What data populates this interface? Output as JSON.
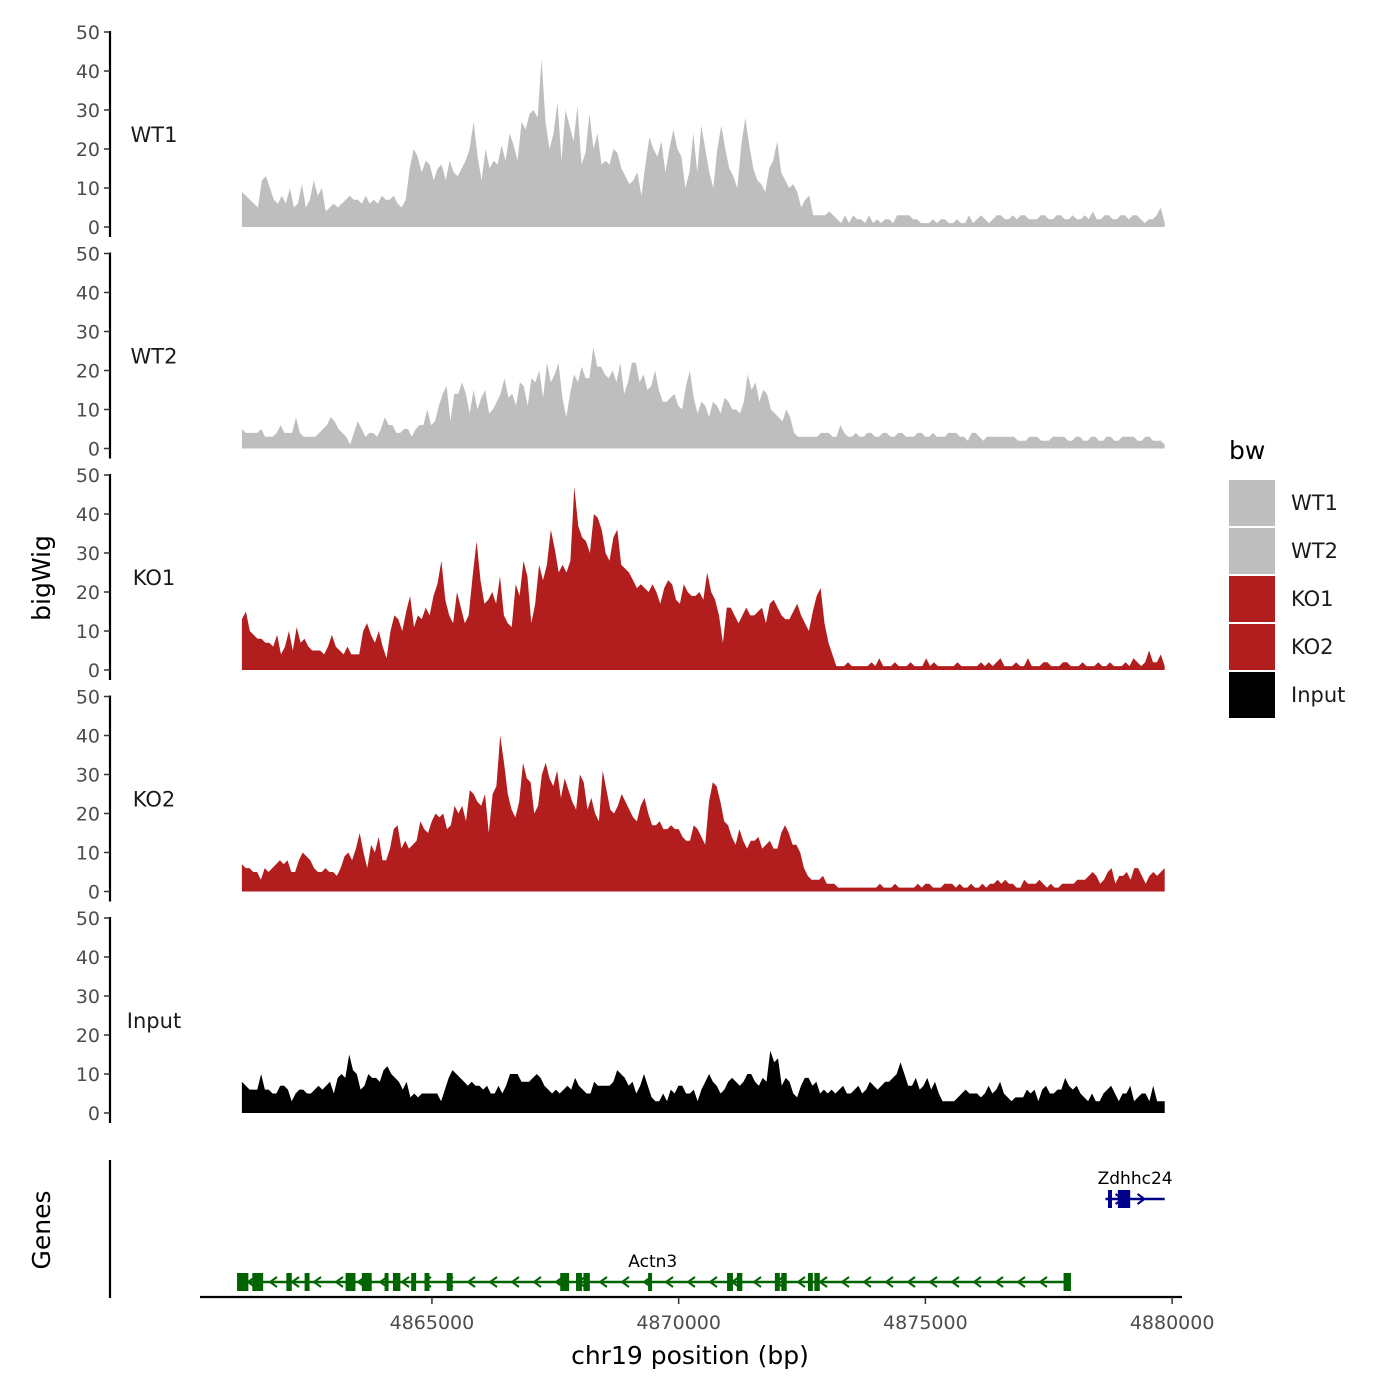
{
  "chart_data": {
    "type": "area",
    "subtype": "genome-browser-coverage-tracks",
    "y_axis_title": "bigWig",
    "genes_axis_title": "Genes",
    "x_axis_title": "chr19 position (bp)",
    "x_range": [
      4860300,
      4880200
    ],
    "x_data_extent": [
      4861150,
      4879850
    ],
    "x_ticks": [
      4865000,
      4870000,
      4875000,
      4880000
    ],
    "x_tick_labels": [
      "4865000",
      "4870000",
      "4875000",
      "4880000"
    ],
    "y_range": [
      0,
      50
    ],
    "y_ticks": [
      0,
      10,
      20,
      30,
      40,
      50
    ],
    "y_tick_labels": [
      "0",
      "10",
      "20",
      "30",
      "40",
      "50"
    ],
    "legend": {
      "title": "bw",
      "entries": [
        {
          "label": "WT1",
          "color": "#bebebe"
        },
        {
          "label": "WT2",
          "color": "#bebebe"
        },
        {
          "label": "KO1",
          "color": "#b21e1e"
        },
        {
          "label": "KO2",
          "color": "#b21e1e"
        },
        {
          "label": "Input",
          "color": "#000000"
        }
      ]
    },
    "tracks": [
      {
        "name": "WT1",
        "color": "#bebebe",
        "values": [
          9,
          8,
          7,
          6,
          5,
          12,
          13,
          10,
          7,
          6,
          8,
          6,
          10,
          5,
          6,
          11,
          5,
          7,
          12,
          8,
          10,
          4,
          5,
          6,
          5,
          6,
          7,
          8,
          7,
          7,
          6,
          8,
          6,
          7,
          6,
          8,
          7,
          7,
          8,
          6,
          5,
          7,
          15,
          20,
          18,
          14,
          17,
          16,
          12,
          15,
          16,
          12,
          17,
          14,
          13,
          15,
          17,
          20,
          27,
          18,
          12,
          20,
          15,
          17,
          16,
          21,
          17,
          24,
          21,
          17,
          27,
          25,
          29,
          30,
          28,
          43,
          27,
          20,
          24,
          32,
          17,
          30,
          26,
          22,
          31,
          16,
          19,
          29,
          20,
          24,
          16,
          17,
          16,
          20,
          19,
          15,
          13,
          11,
          12,
          14,
          8,
          16,
          23,
          20,
          18,
          22,
          14,
          20,
          25,
          20,
          18,
          10,
          14,
          24,
          14,
          26,
          20,
          14,
          10,
          20,
          26,
          20,
          15,
          13,
          10,
          21,
          28,
          21,
          15,
          12,
          11,
          9,
          15,
          17,
          22,
          14,
          12,
          10,
          11,
          9,
          5,
          7,
          8,
          3,
          3,
          3,
          3,
          4,
          3,
          2,
          1,
          3,
          1,
          3,
          2,
          2,
          1,
          3,
          1,
          2,
          1,
          2,
          2,
          1,
          3,
          3,
          3,
          3,
          2,
          2,
          1,
          1,
          1,
          2,
          1,
          2,
          2,
          1,
          1,
          2,
          1,
          1,
          3,
          1,
          2,
          3,
          2,
          1,
          2,
          3,
          3,
          2,
          2,
          3,
          2,
          3,
          3,
          2,
          2,
          2,
          3,
          3,
          2,
          2,
          3,
          3,
          2,
          2,
          3,
          2,
          2,
          3,
          2,
          4,
          2,
          2,
          3,
          3,
          2,
          2,
          3,
          3,
          2,
          3,
          3,
          2,
          1,
          2,
          2,
          3,
          5,
          1
        ]
      },
      {
        "name": "WT2",
        "color": "#bebebe",
        "values": [
          5,
          4,
          4,
          4,
          4,
          5,
          3,
          3,
          3,
          4,
          6,
          4,
          4,
          4,
          8,
          4,
          3,
          3,
          3,
          3,
          4,
          5,
          6,
          8,
          7,
          5,
          4,
          3,
          1,
          4,
          7,
          5,
          3,
          4,
          4,
          3,
          5,
          8,
          6,
          6,
          4,
          4,
          5,
          5,
          3,
          5,
          6,
          6,
          10,
          6,
          7,
          11,
          14,
          16,
          7,
          14,
          14,
          17,
          14,
          9,
          15,
          10,
          13,
          15,
          9,
          10,
          12,
          14,
          18,
          13,
          14,
          11,
          17,
          16,
          11,
          18,
          17,
          20,
          13,
          22,
          17,
          19,
          22,
          13,
          8,
          14,
          19,
          17,
          21,
          18,
          18,
          26,
          21,
          21,
          19,
          18,
          20,
          17,
          22,
          14,
          17,
          22,
          22,
          17,
          19,
          15,
          16,
          20,
          15,
          12,
          12,
          13,
          14,
          11,
          10,
          16,
          20,
          13,
          9,
          12,
          11,
          8,
          12,
          11,
          9,
          13,
          12,
          10,
          10,
          9,
          12,
          19,
          15,
          17,
          12,
          15,
          14,
          10,
          9,
          8,
          7,
          10,
          8,
          4,
          3,
          3,
          3,
          3,
          3,
          3,
          4,
          4,
          4,
          3,
          3,
          6,
          4,
          3,
          3,
          4,
          3,
          3,
          4,
          4,
          3,
          3,
          4,
          4,
          3,
          3,
          4,
          4,
          3,
          3,
          3,
          4,
          4,
          3,
          3,
          4,
          3,
          3,
          3,
          4,
          4,
          4,
          3,
          3,
          2,
          4,
          4,
          3,
          2,
          3,
          3,
          3,
          3,
          3,
          3,
          3,
          3,
          2,
          2,
          2,
          3,
          3,
          3,
          2,
          2,
          2,
          3,
          3,
          3,
          3,
          2,
          2,
          3,
          3,
          2,
          2,
          3,
          3,
          2,
          2,
          3,
          3,
          2,
          2,
          3,
          3,
          3,
          3,
          2,
          2,
          3,
          3,
          2,
          2,
          2,
          1
        ]
      },
      {
        "name": "KO1",
        "color": "#b21e1e",
        "values": [
          13,
          15,
          10,
          9,
          8,
          8,
          7,
          7,
          6,
          9,
          4,
          6,
          10,
          5,
          11,
          7,
          8,
          6,
          5,
          5,
          5,
          4,
          6,
          9,
          6,
          5,
          4,
          6,
          4,
          4,
          4,
          10,
          12,
          9,
          7,
          10,
          6,
          3,
          10,
          14,
          13,
          10,
          15,
          19,
          11,
          14,
          13,
          16,
          14,
          19,
          22,
          28,
          18,
          14,
          12,
          20,
          16,
          12,
          14,
          24,
          33,
          23,
          17,
          18,
          20,
          17,
          24,
          14,
          12,
          11,
          22,
          19,
          28,
          24,
          12,
          17,
          27,
          23,
          27,
          36,
          31,
          25,
          27,
          25,
          28,
          47,
          37,
          34,
          33,
          30,
          40,
          39,
          36,
          30,
          28,
          34,
          36,
          27,
          26,
          25,
          23,
          21,
          22,
          21,
          20,
          22,
          20,
          17,
          21,
          23,
          22,
          18,
          17,
          22,
          20,
          19,
          19,
          20,
          18,
          25,
          20,
          18,
          14,
          7,
          16,
          16,
          14,
          12,
          14,
          16,
          14,
          14,
          15,
          16,
          12,
          17,
          18,
          16,
          14,
          13,
          13,
          15,
          17,
          14,
          12,
          10,
          15,
          19,
          21,
          12,
          7,
          4,
          1,
          1,
          1,
          2,
          1,
          1,
          1,
          1,
          1,
          2,
          1,
          3,
          1,
          1,
          1,
          2,
          1,
          1,
          1,
          2,
          1,
          1,
          1,
          3,
          1,
          2,
          1,
          1,
          1,
          1,
          1,
          2,
          1,
          1,
          1,
          1,
          1,
          2,
          1,
          2,
          1,
          2,
          3,
          1,
          1,
          1,
          2,
          1,
          1,
          3,
          1,
          1,
          1,
          2,
          2,
          1,
          1,
          1,
          2,
          2,
          1,
          1,
          1,
          2,
          1,
          1,
          1,
          2,
          1,
          1,
          2,
          1,
          1,
          1,
          2,
          1,
          3,
          2,
          1,
          2,
          5,
          2,
          2,
          4,
          1
        ]
      },
      {
        "name": "KO2",
        "color": "#b21e1e",
        "values": [
          7,
          6,
          6,
          5,
          5,
          3,
          6,
          5,
          6,
          7,
          8,
          7,
          8,
          5,
          5,
          8,
          10,
          9,
          8,
          6,
          5,
          5,
          6,
          5,
          5,
          4,
          6,
          9,
          10,
          8,
          11,
          15,
          10,
          6,
          12,
          10,
          14,
          8,
          8,
          11,
          16,
          17,
          11,
          13,
          11,
          12,
          13,
          18,
          16,
          15,
          18,
          20,
          19,
          20,
          16,
          17,
          22,
          20,
          22,
          18,
          26,
          25,
          23,
          22,
          25,
          15,
          25,
          27,
          40,
          33,
          25,
          21,
          19,
          23,
          33,
          29,
          28,
          20,
          22,
          30,
          33,
          29,
          27,
          31,
          24,
          29,
          26,
          23,
          21,
          30,
          28,
          21,
          24,
          20,
          18,
          31,
          26,
          21,
          20,
          22,
          25,
          23,
          21,
          19,
          18,
          22,
          24,
          20,
          17,
          17,
          18,
          16,
          16,
          17,
          16,
          16,
          14,
          13,
          13,
          17,
          16,
          14,
          12,
          23,
          28,
          27,
          23,
          18,
          17,
          14,
          12,
          16,
          13,
          11,
          13,
          13,
          14,
          11,
          12,
          13,
          11,
          11,
          15,
          17,
          15,
          12,
          12,
          10,
          6,
          4,
          3,
          3,
          3,
          4,
          2,
          2,
          2,
          1,
          1,
          1,
          1,
          1,
          1,
          1,
          1,
          1,
          1,
          1,
          2,
          1,
          1,
          1,
          2,
          1,
          1,
          1,
          1,
          1,
          2,
          1,
          2,
          2,
          1,
          1,
          1,
          2,
          2,
          2,
          1,
          2,
          1,
          1,
          2,
          1,
          1,
          2,
          1,
          2,
          2,
          3,
          2,
          3,
          2,
          2,
          1,
          1,
          3,
          2,
          2,
          2,
          3,
          2,
          1,
          2,
          1,
          1,
          2,
          2,
          2,
          2,
          3,
          3,
          3,
          4,
          5,
          4,
          2,
          3,
          5,
          6,
          2,
          4,
          4,
          5,
          3,
          6,
          6,
          4,
          2,
          4,
          5,
          4,
          5,
          6
        ]
      },
      {
        "name": "Input",
        "color": "#000000",
        "values": [
          8,
          7,
          6,
          6,
          6,
          10,
          6,
          6,
          5,
          5,
          7,
          7,
          6,
          3,
          5,
          6,
          6,
          5,
          5,
          6,
          7,
          6,
          7,
          8,
          5,
          9,
          10,
          9,
          15,
          11,
          10,
          6,
          7,
          10,
          9,
          9,
          8,
          11,
          12,
          10,
          9,
          8,
          6,
          8,
          4,
          5,
          4,
          5,
          5,
          5,
          5,
          5,
          3,
          6,
          9,
          11,
          10,
          9,
          8,
          7,
          8,
          7,
          7,
          6,
          7,
          5,
          5,
          7,
          5,
          7,
          10,
          10,
          10,
          8,
          8,
          8,
          9,
          10,
          9,
          7,
          6,
          5,
          6,
          5,
          6,
          7,
          6,
          9,
          7,
          6,
          5,
          5,
          8,
          7,
          7,
          7,
          7,
          8,
          11,
          10,
          9,
          7,
          8,
          5,
          7,
          10,
          7,
          4,
          3,
          3,
          5,
          3,
          6,
          5,
          7,
          7,
          5,
          5,
          6,
          3,
          6,
          8,
          10,
          8,
          7,
          5,
          6,
          8,
          9,
          8,
          7,
          8,
          10,
          10,
          8,
          7,
          9,
          8,
          16,
          13,
          14,
          7,
          9,
          8,
          5,
          4,
          7,
          9,
          9,
          7,
          8,
          5,
          6,
          5,
          6,
          5,
          6,
          7,
          5,
          5,
          6,
          7,
          5,
          6,
          8,
          7,
          6,
          7,
          8,
          8,
          9,
          10,
          13,
          10,
          7,
          7,
          9,
          6,
          7,
          9,
          6,
          8,
          5,
          3,
          3,
          3,
          3,
          4,
          5,
          6,
          5,
          5,
          5,
          4,
          5,
          7,
          5,
          6,
          8,
          5,
          4,
          3,
          4,
          4,
          4,
          6,
          5,
          6,
          3,
          6,
          7,
          5,
          5,
          6,
          6,
          9,
          7,
          6,
          7,
          5,
          4,
          3,
          5,
          3,
          3,
          5,
          6,
          7,
          5,
          3,
          5,
          5,
          7,
          3,
          4,
          5,
          5,
          3,
          7,
          3,
          3,
          3
        ]
      }
    ],
    "genes": [
      {
        "name": "Actn3",
        "strand": "-",
        "color": "#006400",
        "start": 4861050,
        "end": 4877900,
        "exons": [
          [
            4861050,
            4861280
          ],
          [
            4861360,
            4861580
          ],
          [
            4862050,
            4862160
          ],
          [
            4862420,
            4862520
          ],
          [
            4863250,
            4863450
          ],
          [
            4863580,
            4863780
          ],
          [
            4864040,
            4864120
          ],
          [
            4864210,
            4864360
          ],
          [
            4864580,
            4864680
          ],
          [
            4864850,
            4864950
          ],
          [
            4865300,
            4865420
          ],
          [
            4867600,
            4867780
          ],
          [
            4867920,
            4868040
          ],
          [
            4868070,
            4868200
          ],
          [
            4869380,
            4869460
          ],
          [
            4870980,
            4871100
          ],
          [
            4871180,
            4871290
          ],
          [
            4871950,
            4872050
          ],
          [
            4872080,
            4872190
          ],
          [
            4872620,
            4872720
          ],
          [
            4872750,
            4872860
          ],
          [
            4877800,
            4877950
          ]
        ]
      },
      {
        "name": "Zdhhc24",
        "strand": "+",
        "color": "#00008b",
        "start": 4878650,
        "end": 4879850,
        "exons": [
          [
            4878700,
            4878760
          ],
          [
            4878900,
            4879150
          ]
        ]
      }
    ]
  }
}
